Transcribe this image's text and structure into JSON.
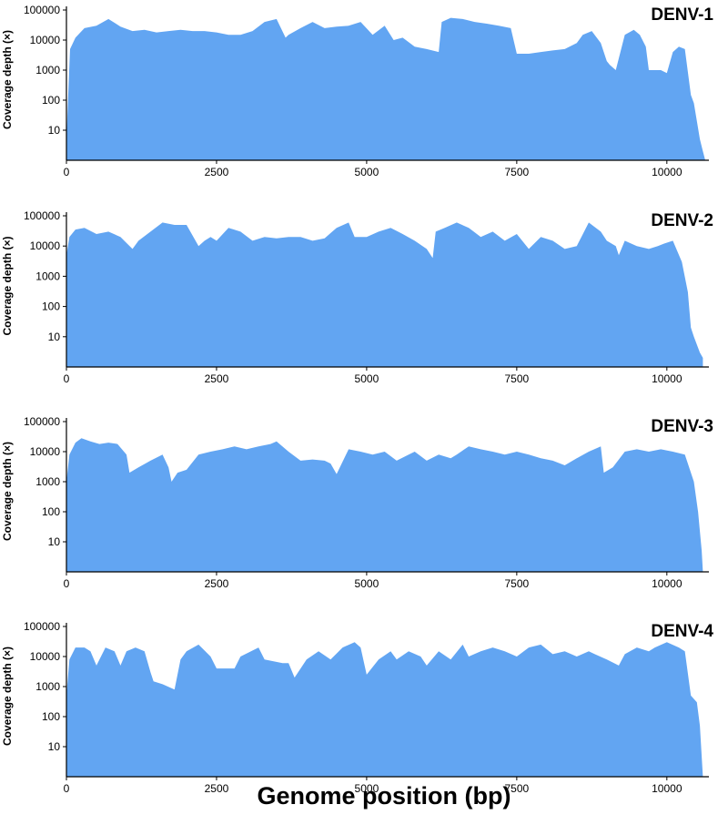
{
  "figure": {
    "xlabel": "Genome position (bp)"
  },
  "chart_data": [
    {
      "type": "area",
      "title": "DENV-1",
      "ylabel": "Coverage depth (×)",
      "yscale": "log",
      "xlim": [
        0,
        10700
      ],
      "ylim": [
        1,
        100000
      ],
      "xticks": [
        0,
        2500,
        5000,
        7500,
        10000
      ],
      "xtick_labels": [
        "0",
        "2500",
        "5000",
        "7500",
        "10000"
      ],
      "yticks": [
        10,
        100,
        1000,
        10000,
        100000
      ],
      "ytick_labels": [
        "10",
        "100",
        "1000",
        "10000",
        "100000"
      ],
      "color": "#62a5f2",
      "x": [
        0,
        60,
        150,
        300,
        500,
        700,
        900,
        1100,
        1300,
        1500,
        1700,
        1900,
        2100,
        2300,
        2500,
        2700,
        2900,
        3100,
        3300,
        3500,
        3650,
        3700,
        3900,
        4100,
        4300,
        4500,
        4700,
        4900,
        5100,
        5300,
        5450,
        5600,
        5800,
        6000,
        6200,
        6250,
        6400,
        6600,
        6800,
        7000,
        7200,
        7400,
        7500,
        7700,
        7900,
        8100,
        8300,
        8500,
        8600,
        8750,
        8900,
        9000,
        9050,
        9150,
        9300,
        9450,
        9550,
        9650,
        9700,
        9900,
        10000,
        10100,
        10200,
        10300,
        10400,
        10450,
        10550,
        10600,
        10640
      ],
      "y": [
        5,
        5000,
        12000,
        25000,
        30000,
        50000,
        28000,
        20000,
        22000,
        18000,
        20000,
        22000,
        20000,
        20000,
        18000,
        15000,
        15000,
        20000,
        40000,
        50000,
        12000,
        15000,
        25000,
        40000,
        25000,
        28000,
        30000,
        40000,
        15000,
        30000,
        10000,
        12000,
        6000,
        5000,
        4000,
        40000,
        55000,
        50000,
        40000,
        35000,
        30000,
        25000,
        3500,
        3500,
        4000,
        4500,
        5000,
        8000,
        15000,
        20000,
        8000,
        2000,
        1500,
        1000,
        15000,
        22000,
        15000,
        6000,
        1000,
        1000,
        800,
        4000,
        6000,
        5000,
        150,
        80,
        5,
        2,
        1
      ]
    },
    {
      "type": "area",
      "title": "DENV-2",
      "ylabel": "Coverage depth (×)",
      "yscale": "log",
      "xlim": [
        0,
        10700
      ],
      "ylim": [
        1,
        100000
      ],
      "xticks": [
        0,
        2500,
        5000,
        7500,
        10000
      ],
      "xtick_labels": [
        "0",
        "2500",
        "5000",
        "7500",
        "10000"
      ],
      "yticks": [
        10,
        100,
        1000,
        10000,
        100000
      ],
      "ytick_labels": [
        "10",
        "100",
        "1000",
        "10000",
        "100000"
      ],
      "color": "#62a5f2",
      "x": [
        0,
        50,
        150,
        300,
        500,
        700,
        900,
        1100,
        1200,
        1400,
        1600,
        1800,
        2000,
        2200,
        2300,
        2400,
        2500,
        2700,
        2900,
        3100,
        3300,
        3500,
        3700,
        3900,
        4100,
        4300,
        4500,
        4700,
        4800,
        5000,
        5200,
        5400,
        5600,
        5800,
        6000,
        6100,
        6150,
        6300,
        6500,
        6700,
        6900,
        7100,
        7300,
        7500,
        7700,
        7900,
        8100,
        8300,
        8500,
        8700,
        8900,
        9000,
        9150,
        9200,
        9300,
        9500,
        9700,
        9850,
        9950,
        10100,
        10250,
        10350,
        10400,
        10450,
        10550,
        10600
      ],
      "y": [
        5000,
        20000,
        35000,
        40000,
        25000,
        30000,
        20000,
        8000,
        15000,
        30000,
        60000,
        50000,
        50000,
        10000,
        15000,
        20000,
        15000,
        40000,
        30000,
        15000,
        20000,
        18000,
        20000,
        20000,
        15000,
        18000,
        40000,
        60000,
        20000,
        20000,
        30000,
        40000,
        25000,
        15000,
        8000,
        4000,
        30000,
        40000,
        60000,
        40000,
        20000,
        30000,
        15000,
        25000,
        8000,
        20000,
        15000,
        8000,
        10000,
        60000,
        30000,
        15000,
        10000,
        5000,
        15000,
        10000,
        8000,
        10000,
        12000,
        15000,
        3000,
        300,
        20,
        10,
        3,
        2
      ]
    },
    {
      "type": "area",
      "title": "DENV-3",
      "ylabel": "Coverage depth (×)",
      "yscale": "log",
      "xlim": [
        0,
        10700
      ],
      "ylim": [
        1,
        100000
      ],
      "xticks": [
        0,
        2500,
        5000,
        7500,
        10000
      ],
      "xtick_labels": [
        "0",
        "2500",
        "5000",
        "7500",
        "10000"
      ],
      "yticks": [
        10,
        100,
        1000,
        10000,
        100000
      ],
      "ytick_labels": [
        "10",
        "100",
        "1000",
        "10000",
        "100000"
      ],
      "color": "#62a5f2",
      "x": [
        0,
        50,
        150,
        250,
        400,
        550,
        700,
        850,
        1000,
        1050,
        1200,
        1400,
        1600,
        1700,
        1750,
        1850,
        2000,
        2200,
        2400,
        2600,
        2800,
        3000,
        3200,
        3400,
        3500,
        3700,
        3900,
        4100,
        4300,
        4400,
        4500,
        4700,
        4900,
        5100,
        5300,
        5500,
        5700,
        5800,
        6000,
        6200,
        6400,
        6500,
        6700,
        6900,
        7100,
        7300,
        7500,
        7700,
        7900,
        8100,
        8300,
        8500,
        8700,
        8900,
        8950,
        9100,
        9300,
        9500,
        9700,
        9900,
        10100,
        10300,
        10450,
        10520,
        10580,
        10600
      ],
      "y": [
        1000,
        8000,
        20000,
        28000,
        22000,
        18000,
        20000,
        18000,
        8000,
        2000,
        3000,
        5000,
        8000,
        3000,
        1000,
        2000,
        2500,
        8000,
        10000,
        12000,
        15000,
        12000,
        15000,
        18000,
        22000,
        10000,
        5000,
        5500,
        5000,
        4000,
        1800,
        12000,
        10000,
        8000,
        10000,
        5000,
        8000,
        10000,
        5000,
        8000,
        6000,
        8000,
        15000,
        12000,
        10000,
        8000,
        10000,
        8000,
        6000,
        5000,
        3500,
        6000,
        10000,
        15000,
        2000,
        3000,
        10000,
        12000,
        10000,
        12000,
        10000,
        8000,
        1000,
        100,
        5,
        1
      ]
    },
    {
      "type": "area",
      "title": "DENV-4",
      "ylabel": "Coverage depth (×)",
      "yscale": "log",
      "xlim": [
        0,
        10700
      ],
      "ylim": [
        1,
        100000
      ],
      "xticks": [
        0,
        2500,
        5000,
        7500,
        10000
      ],
      "xtick_labels": [
        "0",
        "2500",
        "5000",
        "7500",
        "10000"
      ],
      "yticks": [
        10,
        100,
        1000,
        10000,
        100000
      ],
      "ytick_labels": [
        "10",
        "100",
        "1000",
        "10000",
        "100000"
      ],
      "color": "#62a5f2",
      "x": [
        0,
        50,
        150,
        300,
        400,
        500,
        650,
        800,
        900,
        1000,
        1150,
        1300,
        1400,
        1450,
        1600,
        1800,
        1900,
        2000,
        2200,
        2400,
        2500,
        2800,
        2900,
        3200,
        3300,
        3600,
        3700,
        3800,
        4000,
        4200,
        4400,
        4600,
        4800,
        4900,
        5000,
        5200,
        5400,
        5500,
        5700,
        5900,
        6000,
        6200,
        6400,
        6600,
        6700,
        6900,
        7100,
        7300,
        7500,
        7700,
        7900,
        8100,
        8300,
        8500,
        8700,
        8800,
        9000,
        9200,
        9300,
        9500,
        9700,
        9800,
        10000,
        10200,
        10300,
        10400,
        10500,
        10550,
        10600
      ],
      "y": [
        500,
        8000,
        20000,
        20000,
        15000,
        5000,
        20000,
        15000,
        5000,
        15000,
        20000,
        15000,
        3000,
        1500,
        1200,
        800,
        8000,
        15000,
        25000,
        10000,
        4000,
        4000,
        10000,
        20000,
        8000,
        6000,
        6000,
        2000,
        8000,
        15000,
        8000,
        20000,
        30000,
        20000,
        2500,
        8000,
        15000,
        8000,
        15000,
        10000,
        5000,
        15000,
        8000,
        25000,
        10000,
        15000,
        20000,
        15000,
        10000,
        20000,
        25000,
        12000,
        15000,
        10000,
        15000,
        12000,
        8000,
        5000,
        12000,
        20000,
        15000,
        20000,
        30000,
        20000,
        15000,
        500,
        300,
        50,
        1
      ]
    }
  ]
}
